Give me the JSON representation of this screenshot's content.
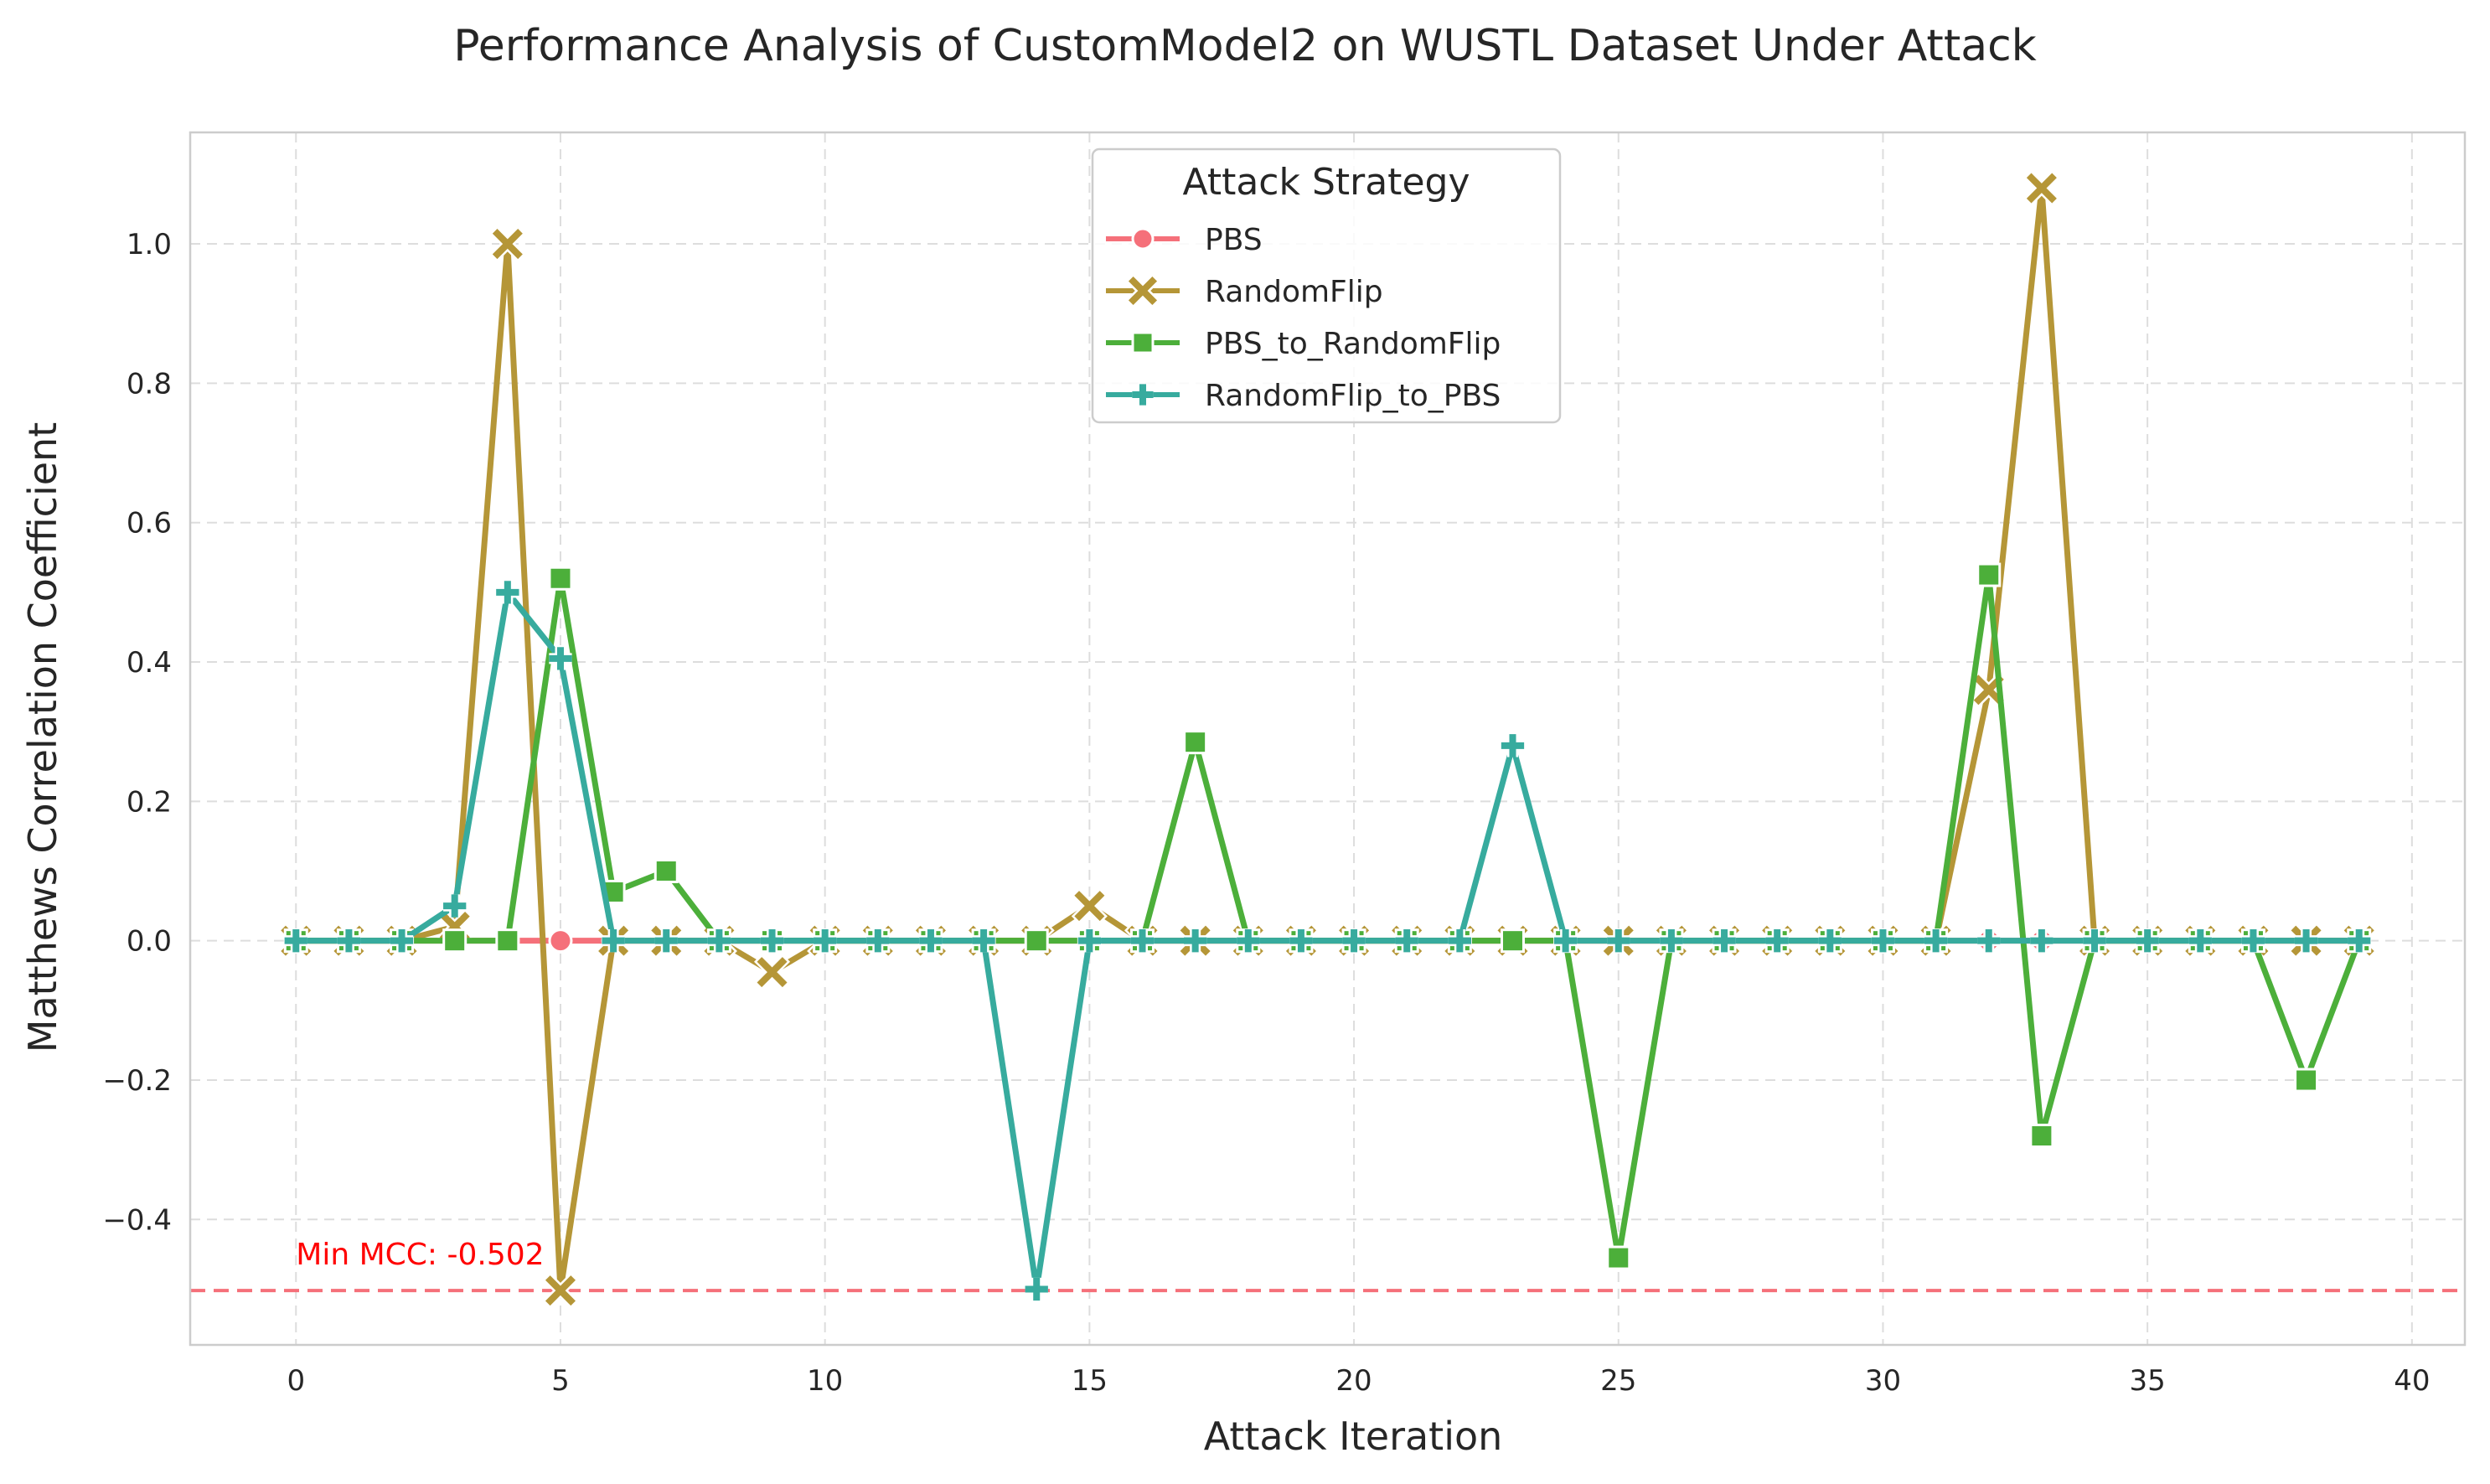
{
  "chart_data": {
    "type": "line",
    "title": "Performance Analysis of CustomModel2 on WUSTL Dataset Under Attack",
    "xlabel": "Attack Iteration",
    "ylabel": "Matthews Correlation Coefficient",
    "xlim": [
      -2,
      41
    ],
    "ylim": [
      -0.58,
      1.16
    ],
    "xticks": [
      0,
      5,
      10,
      15,
      20,
      25,
      30,
      35,
      40
    ],
    "xtick_labels": [
      "0",
      "5",
      "10",
      "15",
      "20",
      "25",
      "30",
      "35",
      "40"
    ],
    "yticks": [
      -0.4,
      -0.2,
      0.0,
      0.2,
      0.4,
      0.6,
      0.8,
      1.0
    ],
    "ytick_labels": [
      "−0.4",
      "−0.2",
      "0.0",
      "0.2",
      "0.4",
      "0.6",
      "0.8",
      "1.0"
    ],
    "grid": true,
    "legend": {
      "title": "Attack Strategy",
      "placement": "upper-center"
    },
    "x": [
      0,
      1,
      2,
      3,
      4,
      5,
      6,
      7,
      8,
      9,
      10,
      11,
      12,
      13,
      14,
      15,
      16,
      17,
      18,
      19,
      20,
      21,
      22,
      23,
      24,
      25,
      26,
      27,
      28,
      29,
      30,
      31,
      32,
      33,
      34,
      35,
      36,
      37,
      38,
      39
    ],
    "series": [
      {
        "name": "PBS",
        "color": "#f5707a",
        "marker": "circle",
        "values": [
          0,
          0,
          0,
          0,
          0,
          0,
          0,
          0,
          0,
          0,
          0,
          0,
          0,
          0,
          0,
          0,
          0,
          0,
          0,
          0,
          0,
          0,
          0,
          0,
          0,
          0,
          0,
          0,
          0,
          0,
          0,
          0,
          0,
          0,
          0,
          0,
          0,
          0,
          0,
          0
        ]
      },
      {
        "name": "RandomFlip",
        "color": "#b59637",
        "marker": "x",
        "values": [
          0,
          0,
          0,
          0.02,
          1.0,
          -0.502,
          0,
          0,
          0,
          -0.045,
          0,
          0,
          0,
          0,
          0,
          0.05,
          0,
          0,
          0,
          0,
          0,
          0,
          0,
          0,
          0,
          0,
          0,
          0,
          0,
          0,
          0,
          0,
          0.36,
          1.08,
          0,
          0,
          0,
          0,
          0,
          0
        ]
      },
      {
        "name": "PBS_to_RandomFlip",
        "color": "#4caf3a",
        "marker": "square",
        "values": [
          0,
          0,
          0,
          0,
          0,
          0.52,
          0.07,
          0.1,
          0,
          0,
          0,
          0,
          0,
          0,
          0,
          0,
          0,
          0.285,
          0,
          0,
          0,
          0,
          0,
          0,
          0,
          -0.455,
          0,
          0,
          0,
          0,
          0,
          0,
          0.525,
          -0.28,
          0,
          0,
          0,
          0,
          -0.2,
          0
        ]
      },
      {
        "name": "RandomFlip_to_PBS",
        "color": "#37ab9e",
        "marker": "plus",
        "values": [
          0,
          0,
          0,
          0.05,
          0.5,
          0.405,
          0,
          0,
          0,
          0,
          0,
          0,
          0,
          0,
          -0.5,
          0,
          0,
          0,
          0,
          0,
          0,
          0,
          0,
          0.28,
          0,
          0,
          0,
          0,
          0,
          0,
          0,
          0,
          0,
          0,
          0,
          0,
          0,
          0,
          0,
          0
        ]
      }
    ],
    "reference_line": {
      "y": -0.502,
      "color": "#f5707a",
      "style": "dashed"
    },
    "annotation": {
      "text": "Min MCC: -0.502",
      "x": 0,
      "y": -0.45,
      "color": "#ff0000"
    }
  }
}
